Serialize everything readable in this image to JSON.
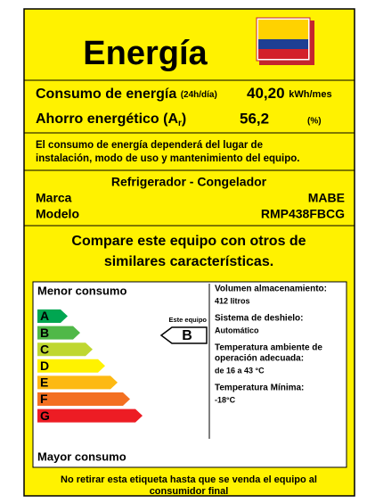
{
  "header": {
    "title": "Energía"
  },
  "consumption": {
    "label": "Consumo de energía",
    "period": "(24h/día)",
    "value": "40,20",
    "unit": "kWh/mes"
  },
  "savings": {
    "label": "Ahorro energético (A",
    "subscript": "r",
    "label_end": ")",
    "value": "56,2",
    "unit": "(%)"
  },
  "notice": [
    "El consumo de energía dependerá del lugar de",
    "instalación, modo de uso y mantenimiento del equipo."
  ],
  "product": {
    "type": "Refrigerador - Congelador",
    "brand_label": "Marca",
    "brand": "MABE",
    "model_label": "Modelo",
    "model": "RMP438FBCG"
  },
  "compare": [
    "Compare este equipo con otros de",
    "similares características."
  ],
  "scale": {
    "top_label": "Menor consumo",
    "bottom_label": "Mayor consumo",
    "classes": [
      "A",
      "B",
      "C",
      "D",
      "E",
      "F",
      "G"
    ],
    "pointer_label": "Este equipo",
    "rating": "B"
  },
  "specs": [
    {
      "label": [
        "Volumen almacenamiento:"
      ],
      "value": "412 litros"
    },
    {
      "label": [
        "Sistema de deshielo:"
      ],
      "value": "Automático"
    },
    {
      "label": [
        "Temperatura ambiente de",
        "operación adecuada:"
      ],
      "value": "de 16 a 43 °C"
    },
    {
      "label": [
        "Temperatura Mínima:"
      ],
      "value": "-18°C"
    }
  ],
  "footer": [
    "No retirar esta etiqueta hasta que se venda el equipo al",
    "consumidor final"
  ]
}
